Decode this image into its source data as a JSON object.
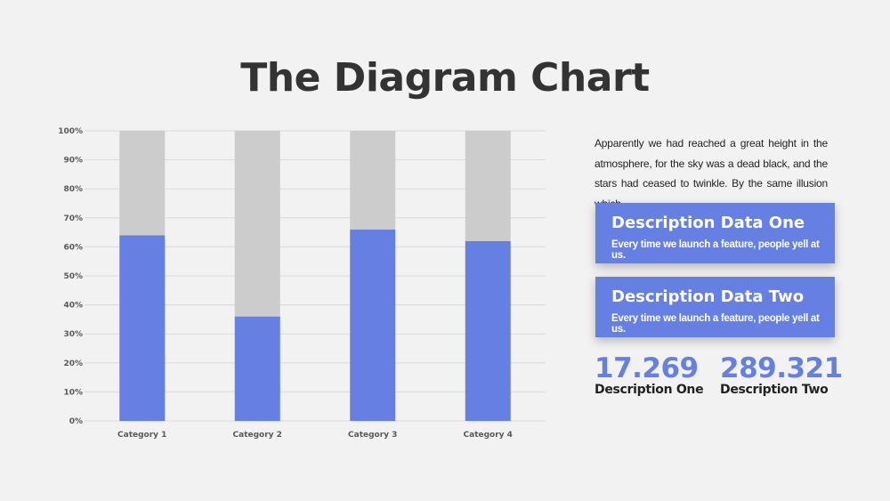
{
  "title": "The Diagram Chart",
  "paragraph": "Apparently we had reached a great height in the atmosphere, for the sky was a dead black, and the stars had ceased to twinkle. By the same illusion which",
  "cards": [
    {
      "title": "Description Data One",
      "subtitle": "Every time we launch a feature, people yell at us."
    },
    {
      "title": "Description Data Two",
      "subtitle": "Every time we launch a feature, people yell at us."
    }
  ],
  "stats": [
    {
      "value": "17.269",
      "label": "Description One"
    },
    {
      "value": "289.321",
      "label": "Description Two"
    }
  ],
  "colors": {
    "accent": "#6580e2",
    "remainder": "#cccccc",
    "grid": "#d9d9d9"
  },
  "chart_data": {
    "type": "bar",
    "stacked": true,
    "percent": true,
    "categories": [
      "Category 1",
      "Category 2",
      "Category 3",
      "Category 4"
    ],
    "series": [
      {
        "values": [
          64,
          36,
          66,
          62
        ],
        "color": "#6580e2"
      },
      {
        "values": [
          36,
          64,
          34,
          38
        ],
        "color": "#cccccc"
      }
    ],
    "yticks": [
      "0%",
      "10%",
      "20%",
      "30%",
      "40%",
      "50%",
      "60%",
      "70%",
      "80%",
      "90%",
      "100%"
    ],
    "ylim": [
      0,
      100
    ],
    "grid": true,
    "legend": "none"
  }
}
